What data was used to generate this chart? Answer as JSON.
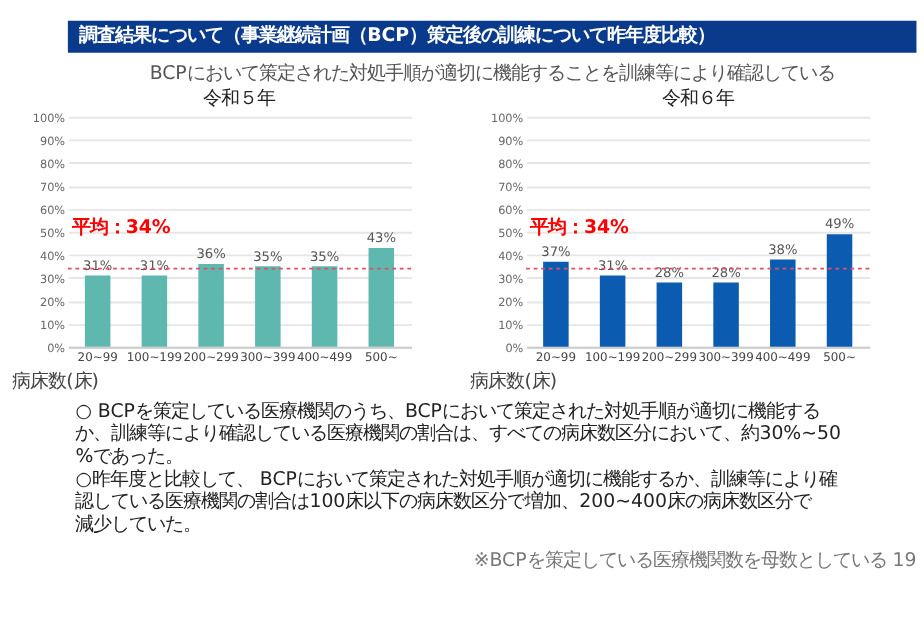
{
  "chart_data": [
    {
      "type": "bar",
      "title": "令和５年",
      "xlabel": "病床数(床)",
      "annotations": [
        "調査結果について（事業継続計画（BCP）策定後の訓練について昨年度比較）",
        "BCPにおいて策定された対処手順が適切に機能することを訓練等により確認している"
      ],
      "categories": [
        "20~99",
        "100~199",
        "200~299",
        "300~399",
        "400~499",
        "500~"
      ],
      "values": [
        31,
        31,
        36,
        35,
        35,
        43
      ],
      "value_labels": [
        "31%",
        "31%",
        "36%",
        "35%",
        "35%",
        "43%"
      ],
      "color": "#5fb8b0",
      "ylim": [
        0,
        100
      ],
      "yticks": [
        {
          "value": 0,
          "label": "0%"
        },
        {
          "value": 10,
          "label": "10%"
        },
        {
          "value": 20,
          "label": "20%"
        },
        {
          "value": 30,
          "label": "30%"
        },
        {
          "value": 40,
          "label": "40%"
        },
        {
          "value": 50,
          "label": "50%"
        },
        {
          "value": 60,
          "label": "60%"
        },
        {
          "value": 70,
          "label": "70%"
        },
        {
          "value": 80,
          "label": "80%"
        },
        {
          "value": 90,
          "label": "90%"
        },
        {
          "value": 100,
          "label": "100%"
        }
      ],
      "grid": "y",
      "ref_lines": [
        {
          "axis": "y",
          "value": 34,
          "label": "平均：34%",
          "color": "#e0505f",
          "line_style": "dotted"
        }
      ]
    },
    {
      "type": "bar",
      "title": "令和６年",
      "xlabel": "病床数(床)",
      "annotations": [
        "○ BCPを策定している医療機関のうち、BCPにおいて策定された対処手順が適切に機能するか、訓練等により確認している医療機関の割合は、すべての病床数区分において、約30%~50%であった。",
        "○昨年度と比較して、 BCPにおいて策定された対処手順が適切に機能するか、訓練等により確認している医療機関の割合は100床以下の病床数区分で増加、200~400床の病床数区分で減少していた。",
        "※BCPを策定している医療機関数を母数としている",
        "19"
      ],
      "categories": [
        "20~99",
        "100~199",
        "200~299",
        "300~399",
        "400~499",
        "500~"
      ],
      "values": [
        37,
        31,
        28,
        28,
        38,
        49
      ],
      "value_labels": [
        "37%",
        "31%",
        "28%",
        "28%",
        "38%",
        "49%"
      ],
      "color": "#0b5cb0",
      "ylim": [
        0,
        100
      ],
      "yticks": [
        {
          "value": 0,
          "label": "0%"
        },
        {
          "value": 10,
          "label": "10%"
        },
        {
          "value": 20,
          "label": "20%"
        },
        {
          "value": 30,
          "label": "30%"
        },
        {
          "value": 40,
          "label": "40%"
        },
        {
          "value": 50,
          "label": "50%"
        },
        {
          "value": 60,
          "label": "60%"
        },
        {
          "value": 70,
          "label": "70%"
        },
        {
          "value": 80,
          "label": "80%"
        },
        {
          "value": 90,
          "label": "90%"
        },
        {
          "value": 100,
          "label": "100%"
        }
      ],
      "grid": "y",
      "ref_lines": [
        {
          "axis": "y",
          "value": 34,
          "label": "平均：34%",
          "color": "#e0505f",
          "line_style": "dotted"
        }
      ]
    }
  ]
}
